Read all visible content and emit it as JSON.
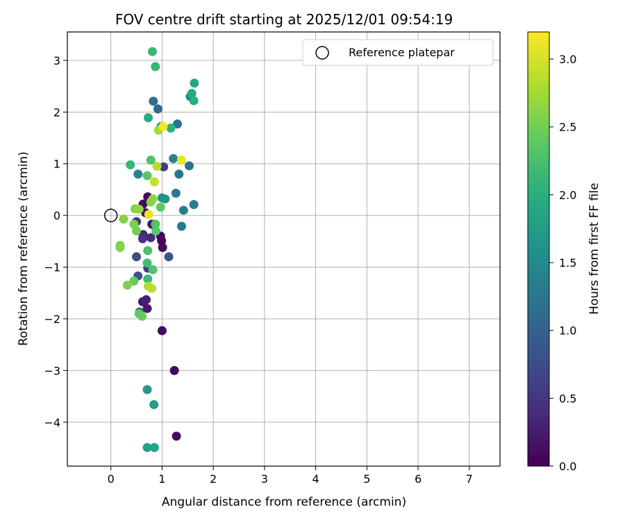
{
  "chart_data": {
    "type": "scatter",
    "title": "FOV centre drift starting at 2025/12/01 09:54:19",
    "xlabel": "Angular distance from reference (arcmin)",
    "ylabel": "Rotation from reference (arcmin)",
    "xlim": [
      -0.85,
      7.6
    ],
    "ylim": [
      -4.85,
      3.55
    ],
    "xticks": [
      0,
      1,
      2,
      3,
      4,
      5,
      6,
      7
    ],
    "yticks": [
      -4,
      -3,
      -2,
      -1,
      0,
      1,
      2,
      3
    ],
    "grid": true,
    "legend": {
      "position": "top-right",
      "entries": [
        "Reference platepar"
      ]
    },
    "reference_point": {
      "x": 0,
      "y": 0,
      "label": "Reference platepar"
    },
    "colorbar": {
      "label": "Hours from first FF file",
      "range": [
        0,
        3.2
      ],
      "ticks": [
        0.0,
        0.5,
        1.0,
        1.5,
        2.0,
        2.5,
        3.0
      ],
      "tick_labels": [
        "0.0",
        "0.5",
        "1.0",
        "1.5",
        "2.0",
        "2.5",
        "3.0"
      ],
      "colormap": "viridis"
    },
    "points": [
      {
        "x": 0.72,
        "y": 0.36,
        "t": 0.05
      },
      {
        "x": 0.63,
        "y": 0.22,
        "t": 0.08
      },
      {
        "x": 0.68,
        "y": 0.05,
        "t": 0.1
      },
      {
        "x": 0.97,
        "y": -0.4,
        "t": 0.02
      },
      {
        "x": 0.99,
        "y": -0.49,
        "t": 0.05
      },
      {
        "x": 1.01,
        "y": -0.62,
        "t": 0.08
      },
      {
        "x": 1.0,
        "y": -2.23,
        "t": 0.05
      },
      {
        "x": 1.24,
        "y": -3.0,
        "t": 0.08
      },
      {
        "x": 1.28,
        "y": -4.27,
        "t": 0.1
      },
      {
        "x": 0.71,
        "y": -1.8,
        "t": 0.2
      },
      {
        "x": 0.62,
        "y": -1.67,
        "t": 0.25
      },
      {
        "x": 0.69,
        "y": -1.63,
        "t": 0.3
      },
      {
        "x": 0.8,
        "y": -0.17,
        "t": 0.2
      },
      {
        "x": 0.63,
        "y": -0.37,
        "t": 0.35
      },
      {
        "x": 0.78,
        "y": -0.43,
        "t": 0.4
      },
      {
        "x": 0.62,
        "y": -0.45,
        "t": 0.45
      },
      {
        "x": 0.5,
        "y": -0.12,
        "t": 0.5
      },
      {
        "x": 0.72,
        "y": -1.02,
        "t": 0.6
      },
      {
        "x": 0.56,
        "y": -1.87,
        "t": 0.7
      },
      {
        "x": 1.03,
        "y": 0.94,
        "t": 0.6
      },
      {
        "x": 0.5,
        "y": -0.8,
        "t": 0.75
      },
      {
        "x": 0.53,
        "y": -1.17,
        "t": 0.8
      },
      {
        "x": 1.13,
        "y": -0.8,
        "t": 0.85
      },
      {
        "x": 0.92,
        "y": 2.06,
        "t": 1.1
      },
      {
        "x": 0.83,
        "y": 2.21,
        "t": 1.15
      },
      {
        "x": 1.3,
        "y": 1.77,
        "t": 1.2
      },
      {
        "x": 1.53,
        "y": 0.96,
        "t": 1.2
      },
      {
        "x": 1.33,
        "y": 0.8,
        "t": 1.25
      },
      {
        "x": 1.27,
        "y": 0.43,
        "t": 1.3
      },
      {
        "x": 1.42,
        "y": 0.1,
        "t": 1.35
      },
      {
        "x": 1.62,
        "y": 0.21,
        "t": 1.35
      },
      {
        "x": 1.38,
        "y": -0.21,
        "t": 1.3
      },
      {
        "x": 1.22,
        "y": 1.1,
        "t": 1.4
      },
      {
        "x": 0.53,
        "y": 0.8,
        "t": 1.45
      },
      {
        "x": 1.55,
        "y": 2.3,
        "t": 1.5
      },
      {
        "x": 0.98,
        "y": 1.72,
        "t": 1.5
      },
      {
        "x": 1.0,
        "y": 0.34,
        "t": 1.6
      },
      {
        "x": 1.06,
        "y": 0.32,
        "t": 1.65
      },
      {
        "x": 0.71,
        "y": -3.37,
        "t": 1.7
      },
      {
        "x": 0.84,
        "y": -3.66,
        "t": 1.75
      },
      {
        "x": 0.71,
        "y": -4.49,
        "t": 1.8
      },
      {
        "x": 0.85,
        "y": -4.49,
        "t": 1.85
      },
      {
        "x": 1.63,
        "y": 2.56,
        "t": 1.9
      },
      {
        "x": 1.58,
        "y": 2.36,
        "t": 1.95
      },
      {
        "x": 1.62,
        "y": 2.22,
        "t": 2.0
      },
      {
        "x": 0.73,
        "y": 1.89,
        "t": 1.95
      },
      {
        "x": 0.87,
        "y": 2.88,
        "t": 2.1
      },
      {
        "x": 0.81,
        "y": 3.17,
        "t": 2.15
      },
      {
        "x": 1.17,
        "y": 1.69,
        "t": 2.05
      },
      {
        "x": 0.38,
        "y": 0.98,
        "t": 2.1
      },
      {
        "x": 0.71,
        "y": -0.92,
        "t": 2.2
      },
      {
        "x": 0.72,
        "y": -0.68,
        "t": 2.25
      },
      {
        "x": 0.72,
        "y": -1.23,
        "t": 2.15
      },
      {
        "x": 0.82,
        "y": -1.05,
        "t": 2.3
      },
      {
        "x": 0.78,
        "y": 1.07,
        "t": 2.3
      },
      {
        "x": 0.71,
        "y": 0.77,
        "t": 2.35
      },
      {
        "x": 0.87,
        "y": -0.17,
        "t": 2.3
      },
      {
        "x": 0.88,
        "y": -0.3,
        "t": 2.35
      },
      {
        "x": 0.97,
        "y": 0.16,
        "t": 2.4
      },
      {
        "x": 0.55,
        "y": -1.9,
        "t": 2.4
      },
      {
        "x": 0.61,
        "y": -1.95,
        "t": 2.45
      },
      {
        "x": 0.45,
        "y": -1.27,
        "t": 2.45
      },
      {
        "x": 0.32,
        "y": -1.35,
        "t": 2.55
      },
      {
        "x": 0.18,
        "y": -0.58,
        "t": 2.55
      },
      {
        "x": 0.18,
        "y": -0.62,
        "t": 2.6
      },
      {
        "x": 0.25,
        "y": -0.07,
        "t": 2.6
      },
      {
        "x": 0.45,
        "y": -0.17,
        "t": 2.55
      },
      {
        "x": 0.5,
        "y": -0.3,
        "t": 2.5
      },
      {
        "x": 0.47,
        "y": 0.13,
        "t": 2.6
      },
      {
        "x": 0.55,
        "y": 0.12,
        "t": 2.65
      },
      {
        "x": 0.82,
        "y": 0.32,
        "t": 2.65
      },
      {
        "x": 0.78,
        "y": 0.26,
        "t": 2.6
      },
      {
        "x": 0.93,
        "y": 1.65,
        "t": 2.75
      },
      {
        "x": 0.73,
        "y": -1.37,
        "t": 2.8
      },
      {
        "x": 0.8,
        "y": -1.41,
        "t": 2.85
      },
      {
        "x": 0.9,
        "y": 0.95,
        "t": 2.85
      },
      {
        "x": 0.85,
        "y": 0.65,
        "t": 2.9
      },
      {
        "x": 0.74,
        "y": 0.02,
        "t": 3.1
      },
      {
        "x": 1.02,
        "y": 1.72,
        "t": 3.15
      },
      {
        "x": 1.38,
        "y": 1.07,
        "t": 3.1
      }
    ]
  }
}
